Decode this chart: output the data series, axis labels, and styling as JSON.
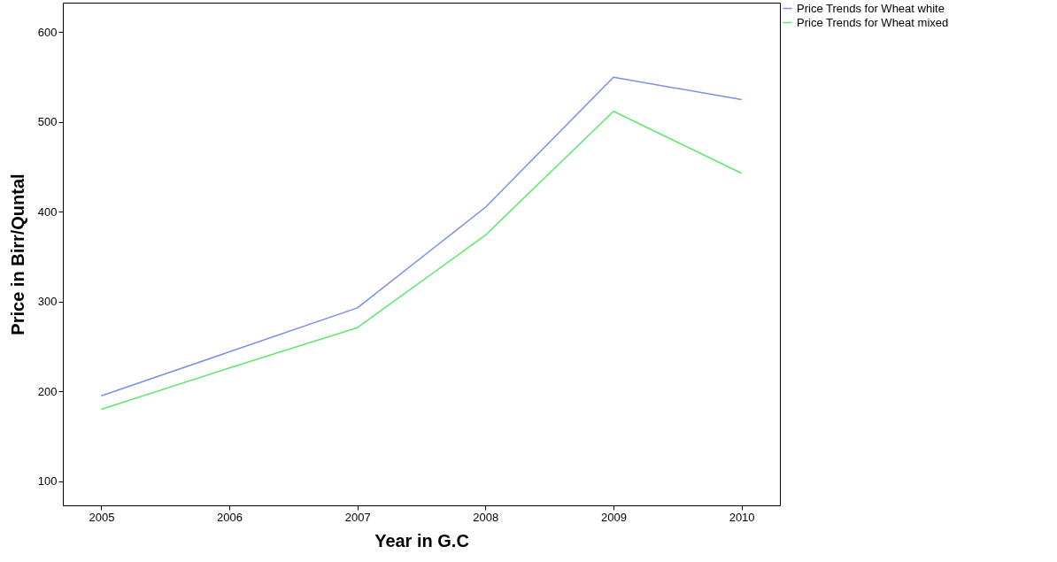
{
  "chart_data": {
    "type": "line",
    "xlabel": "Year in G.C",
    "ylabel": "Price in Birr/Quntal",
    "x": [
      2005,
      2006,
      2007,
      2008,
      2009,
      2010
    ],
    "series": [
      {
        "name": "Price Trends for Wheat white",
        "color": "#7b8fe8",
        "values": [
          195,
          244,
          293,
          405,
          550,
          525
        ]
      },
      {
        "name": "Price Trends for Wheat mixed",
        "color": "#5de86a",
        "values": [
          180,
          226,
          271,
          374,
          512,
          443
        ]
      }
    ],
    "xlim": [
      2004.7,
      2010.3
    ],
    "xticks": [
      2005,
      2006,
      2007,
      2008,
      2009,
      2010
    ],
    "ylim": [
      73,
      633
    ],
    "yticks": [
      100,
      200,
      300,
      400,
      500,
      600
    ],
    "grid": false,
    "legend": "top right",
    "marker": "none",
    "line_style": "solid"
  }
}
